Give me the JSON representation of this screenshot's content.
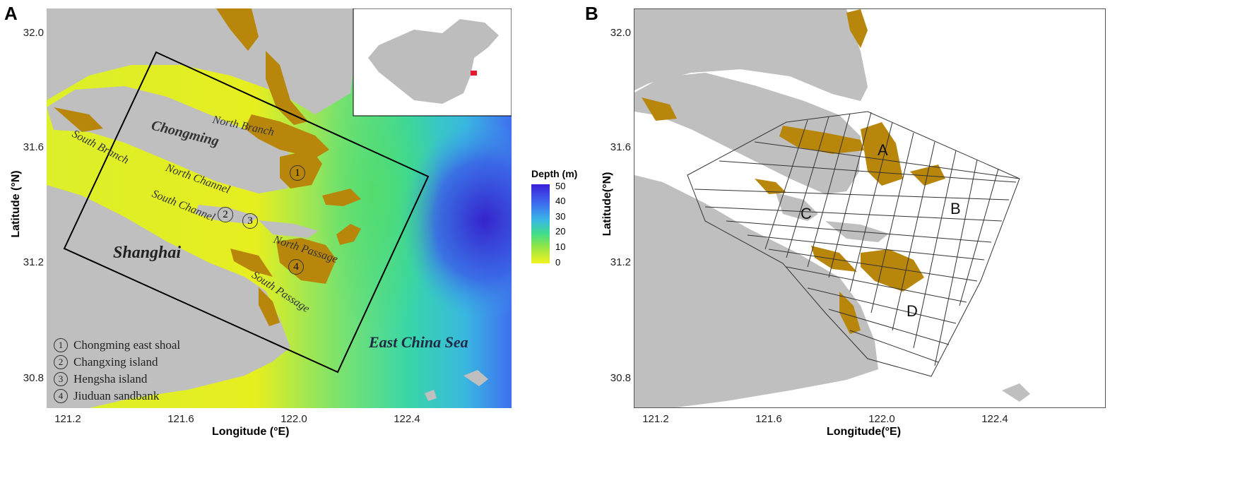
{
  "panels": {
    "a": {
      "letter": "A",
      "xlabel": "Longitude (°E)",
      "ylabel": "Latitude (°N)",
      "x_ticks": [
        "121.2",
        "121.6",
        "122.0",
        "122.4"
      ],
      "y_ticks": [
        "32.0",
        "31.6",
        "31.2",
        "30.8"
      ],
      "places": {
        "chongming": "Chongming",
        "shanghai": "Shanghai",
        "east_china_sea": "East China Sea"
      },
      "channels": {
        "north_branch": "North Branch",
        "south_branch": "South Branch",
        "north_channel": "North Channel",
        "south_channel": "South Channel",
        "north_passage": "North Passage",
        "south_passage": "South Passage"
      },
      "markers": [
        "1",
        "2",
        "3",
        "4"
      ],
      "key": [
        {
          "num": "1",
          "label": "Chongming east shoal"
        },
        {
          "num": "2",
          "label": "Changxing island"
        },
        {
          "num": "3",
          "label": "Hengsha island"
        },
        {
          "num": "4",
          "label": "Jiuduan sandbank"
        }
      ],
      "legend": {
        "title": "Depth (m)",
        "ticks": [
          "50",
          "40",
          "30",
          "20",
          "10",
          "0"
        ]
      }
    },
    "b": {
      "letter": "B",
      "xlabel": "Longitude(°E)",
      "ylabel": "Latitude(°N)",
      "x_ticks": [
        "121.2",
        "121.6",
        "122.0",
        "122.4"
      ],
      "y_ticks": [
        "32.0",
        "31.6",
        "31.2",
        "30.8"
      ],
      "regions": [
        "A",
        "B",
        "C",
        "D"
      ]
    }
  },
  "colors": {
    "land": "#bfbfbf",
    "shoal": "#b8860b",
    "deep": "#2f2bd6",
    "shallow": "#f2f21c",
    "frame": "#000000"
  }
}
